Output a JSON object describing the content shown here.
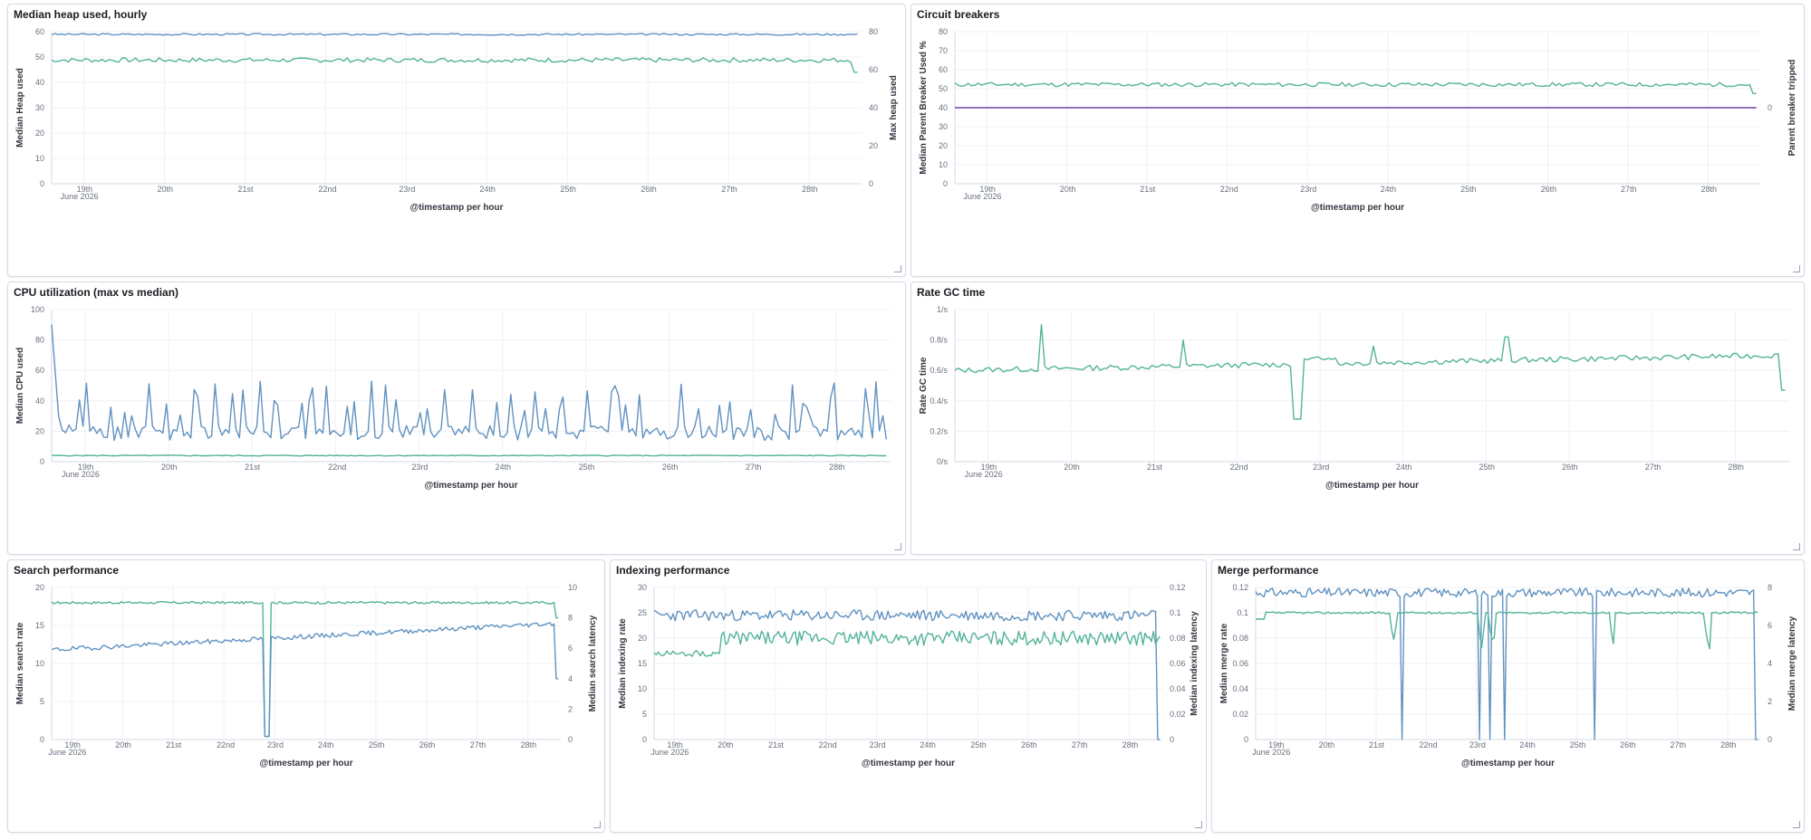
{
  "colors": {
    "blue": "#6092c0",
    "green": "#54b399",
    "purple": "#9170b8"
  },
  "chart_data": [
    {
      "id": "heap",
      "title": "Median heap used, hourly",
      "type": "line",
      "xlabel": "@timestamp per hour",
      "ylabel_left": "Median Heap used",
      "ylabel_right": "Max heap used",
      "x_start_day": 18.6,
      "x_end_day": 28.65,
      "ylim_left": [
        0,
        60
      ],
      "yticks_left": [
        0,
        10,
        20,
        30,
        40,
        50,
        60
      ],
      "ylim_right": [
        0,
        80
      ],
      "yticks_right": [
        0,
        20,
        40,
        60,
        80
      ],
      "series": [
        {
          "color": "blue",
          "axis": "right",
          "base": 78.6,
          "noise": 0.45,
          "seed": 3
        },
        {
          "color": "green",
          "axis": "left",
          "base": 48.8,
          "noise": 0.9,
          "seed": 7,
          "end_drop": 44
        }
      ]
    },
    {
      "id": "circuit",
      "title": "Circuit breakers",
      "type": "line",
      "xlabel": "@timestamp per hour",
      "ylabel_left": "Median Parent Breaker Used %",
      "ylabel_right": "Parent breaker tripped",
      "x_start_day": 18.6,
      "x_end_day": 28.65,
      "ylim_left": [
        0,
        80
      ],
      "yticks_left": [
        0,
        10,
        20,
        30,
        40,
        50,
        60,
        70,
        80
      ],
      "ylim_right": [
        -1,
        1
      ],
      "yticks_right": [
        0
      ],
      "series": [
        {
          "color": "green",
          "axis": "left",
          "base": 52.2,
          "noise": 1.1,
          "seed": 11,
          "end_drop": 47.5
        },
        {
          "color": "purple",
          "axis": "right",
          "base": 0,
          "noise": 0,
          "seed": 1
        }
      ]
    },
    {
      "id": "cpu",
      "title": "CPU utilization (max vs median)",
      "type": "line",
      "xlabel": "@timestamp per hour",
      "ylabel_left": "Median CPU used",
      "x_start_day": 18.6,
      "x_end_day": 28.65,
      "ylim_left": [
        0,
        100
      ],
      "yticks_left": [
        0,
        20,
        40,
        60,
        80,
        100
      ],
      "series": [
        {
          "color": "blue",
          "axis": "left",
          "base": 22,
          "noise": 11,
          "seed": 21,
          "spiky": true,
          "start_spike": 90
        },
        {
          "color": "green",
          "axis": "left",
          "base": 4,
          "noise": 0.3,
          "seed": 5
        }
      ]
    },
    {
      "id": "gc",
      "title": "Rate GC time",
      "type": "line",
      "xlabel": "@timestamp per hour",
      "ylabel_left": "Rate GC time",
      "x_start_day": 18.6,
      "x_end_day": 28.65,
      "ylim_left": [
        0,
        1
      ],
      "yticks_left": [
        0,
        0.2,
        0.4,
        0.6,
        0.8,
        1
      ],
      "yticklabels_left": [
        "0/s",
        "0.2/s",
        "0.4/s",
        "0.6/s",
        "0.8/s",
        "1/s"
      ],
      "series": [
        {
          "color": "green",
          "axis": "left",
          "base": 0.6,
          "noise": 0.018,
          "seed": 13,
          "trend": 0.1,
          "gc": true
        }
      ]
    },
    {
      "id": "search",
      "title": "Search performance",
      "type": "line",
      "xlabel": "@timestamp per hour",
      "ylabel_left": "Median search rate",
      "ylabel_right": "Median search latency",
      "x_start_day": 18.6,
      "x_end_day": 28.65,
      "ylim_left": [
        0,
        20
      ],
      "yticks_left": [
        0,
        5,
        10,
        15,
        20
      ],
      "ylim_right": [
        0,
        10
      ],
      "yticks_right": [
        0,
        2,
        4,
        6,
        8,
        10
      ],
      "series": [
        {
          "color": "green",
          "axis": "right",
          "base": 9.0,
          "noise": 0.08,
          "seed": 17,
          "dip_day": 22.85,
          "end_drop": 8.0
        },
        {
          "color": "blue",
          "axis": "left",
          "base": 11.8,
          "noise": 0.3,
          "seed": 19,
          "trend": 3.5,
          "dip_day": 22.85,
          "end_drop": 8
        }
      ]
    },
    {
      "id": "indexing",
      "title": "Indexing performance",
      "type": "line",
      "xlabel": "@timestamp per hour",
      "ylabel_left": "Median indexing rate",
      "ylabel_right": "Median indexing latency",
      "x_start_day": 18.6,
      "x_end_day": 28.65,
      "ylim_left": [
        0,
        30
      ],
      "yticks_left": [
        0,
        5,
        10,
        15,
        20,
        25,
        30
      ],
      "ylim_right": [
        0,
        0.12
      ],
      "yticks_right": [
        0,
        0.02,
        0.04,
        0.06,
        0.08,
        0.1,
        0.12
      ],
      "series": [
        {
          "color": "blue",
          "axis": "left",
          "base": 24.5,
          "noise": 1.1,
          "seed": 23,
          "end_drop": 0
        },
        {
          "color": "green",
          "axis": "left",
          "base": 20,
          "noise": 1.4,
          "seed": 29,
          "start_low": 17
        }
      ]
    },
    {
      "id": "merge",
      "title": "Merge performance",
      "type": "line",
      "xlabel": "@timestamp per hour",
      "ylabel_left": "Median merge rate",
      "ylabel_right": "Median merge latency",
      "x_start_day": 18.6,
      "x_end_day": 28.65,
      "ylim_left": [
        0,
        0.12
      ],
      "yticks_left": [
        0,
        0.02,
        0.04,
        0.06,
        0.08,
        0.1,
        0.12
      ],
      "ylim_right": [
        0,
        8
      ],
      "yticks_right": [
        0,
        2,
        4,
        6,
        8
      ],
      "series": [
        {
          "color": "blue",
          "axis": "left",
          "base": 0.116,
          "noise": 0.0035,
          "seed": 31,
          "merge_dips": [
            21.5,
            23.05,
            23.25,
            23.55,
            25.35
          ],
          "end_drop": 0
        },
        {
          "color": "green",
          "axis": "left",
          "base": 0.1,
          "noise": 0.0008,
          "seed": 37,
          "merge_green": [
            21.35,
            23.1,
            23.3,
            25.7,
            27.6
          ]
        }
      ]
    }
  ],
  "x_ticks": [
    {
      "day": 19,
      "label": "19th",
      "sub": "June 2026"
    },
    {
      "day": 20,
      "label": "20th"
    },
    {
      "day": 21,
      "label": "21st"
    },
    {
      "day": 22,
      "label": "22nd"
    },
    {
      "day": 23,
      "label": "23rd"
    },
    {
      "day": 24,
      "label": "24th"
    },
    {
      "day": 25,
      "label": "25th"
    },
    {
      "day": 26,
      "label": "26th"
    },
    {
      "day": 27,
      "label": "27th"
    },
    {
      "day": 28,
      "label": "28th"
    }
  ]
}
